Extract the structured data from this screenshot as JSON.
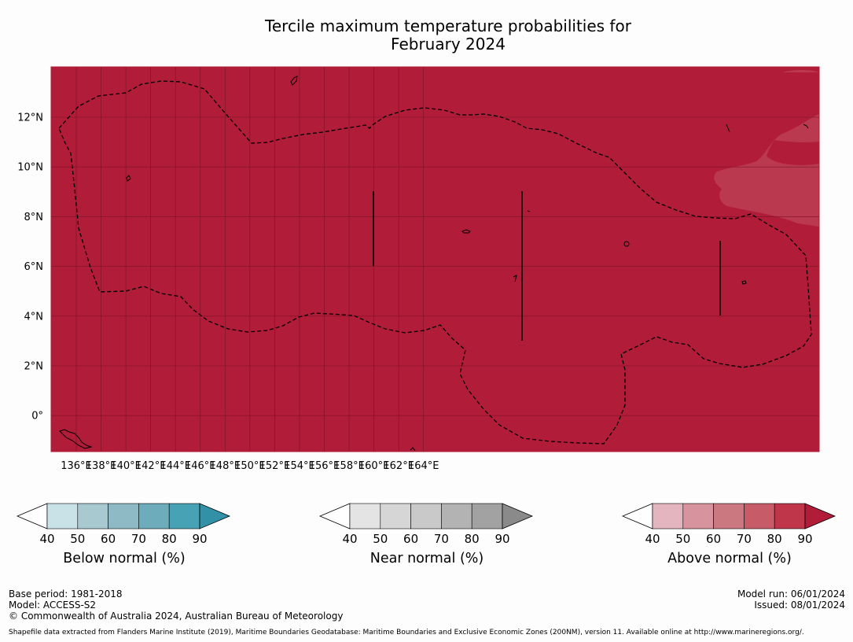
{
  "title": {
    "line1": "Tercile maximum temperature probabilities for",
    "line2": "February 2024"
  },
  "map": {
    "background_color": "#b11c38",
    "light_patch_color": "#bb394f",
    "grid_color": "#7a1226",
    "lon_ticks": [
      "136°E",
      "138°E",
      "140°E",
      "142°E",
      "144°E",
      "146°E",
      "148°E",
      "150°E",
      "152°E",
      "154°E",
      "156°E",
      "158°E",
      "160°E",
      "162°E",
      "164°E"
    ],
    "lat_ticks": [
      "12°N",
      "10°N",
      "8°N",
      "6°N",
      "4°N",
      "2°N",
      "0°"
    ]
  },
  "colorbars": [
    {
      "label": "Below normal (%)",
      "ticks": [
        "40",
        "50",
        "60",
        "70",
        "80",
        "90"
      ],
      "colors": [
        "#c9e2e7",
        "#a8c9d0",
        "#8ebac6",
        "#6dacbb",
        "#48a2b5",
        "#3291a7"
      ]
    },
    {
      "label": "Near normal (%)",
      "ticks": [
        "40",
        "50",
        "60",
        "70",
        "80",
        "90"
      ],
      "colors": [
        "#e4e4e4",
        "#d6d6d6",
        "#c9c9c9",
        "#b3b3b3",
        "#a2a2a2",
        "#8a8a8a"
      ]
    },
    {
      "label": "Above normal (%)",
      "ticks": [
        "40",
        "50",
        "60",
        "70",
        "80",
        "90"
      ],
      "colors": [
        "#e4b5bf",
        "#d7949e",
        "#cc7880",
        "#c75b68",
        "#bf3549",
        "#b11c38"
      ]
    }
  ],
  "footer": {
    "base_period": "Base period: 1981-2018",
    "model": "Model: ACCESS-S2",
    "copyright": "© Commonwealth of Australia 2024, Australian Bureau of Meteorology",
    "model_run": "Model run: 06/01/2024",
    "issued": "Issued: 08/01/2024",
    "shapefile_note": "Shapefile data extracted from Flanders Marine Institute (2019), Maritime Boundaries Geodatabase: Maritime Boundaries and Exclusive Economic Zones (200NM), version 11. Available online at http://www.marineregions.org/."
  }
}
